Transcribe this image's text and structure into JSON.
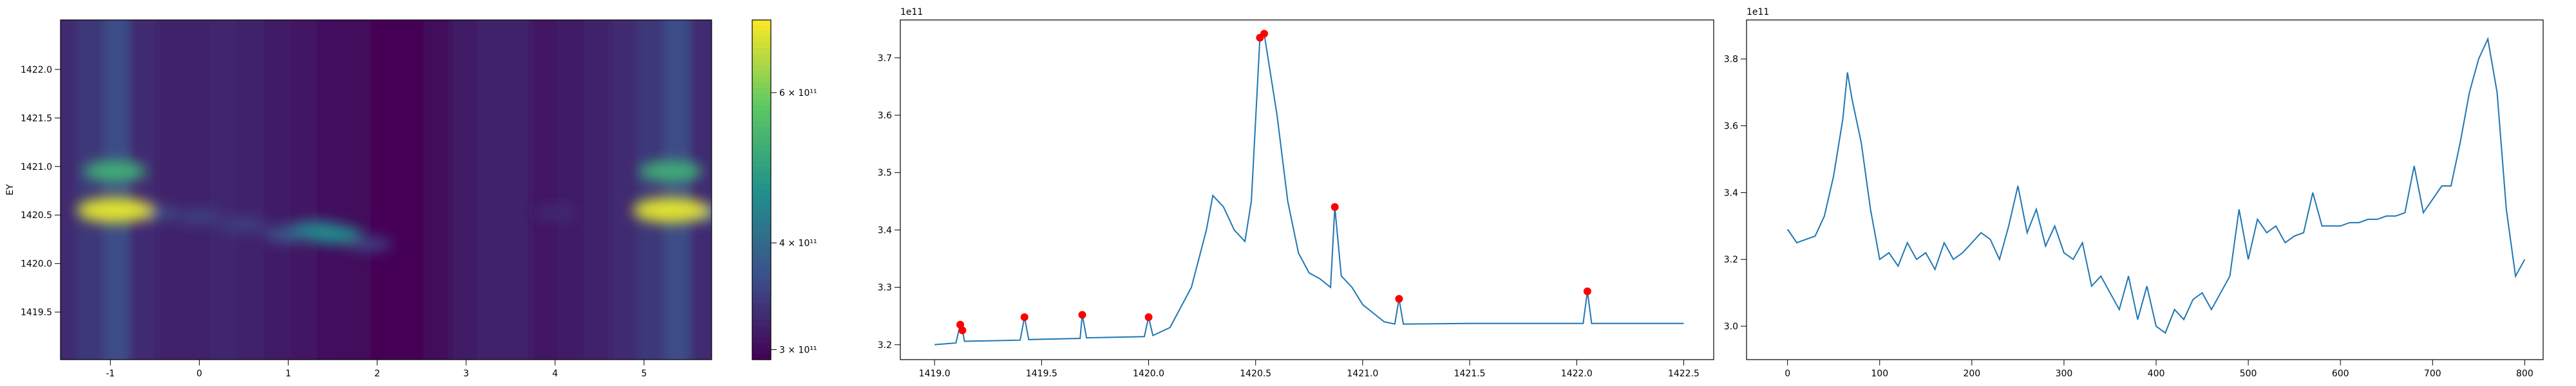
{
  "chart_data": [
    {
      "type": "heatmap",
      "ylabel": "EY",
      "xlim": [
        -1.56,
        5.76
      ],
      "ylim": [
        1419.01,
        1422.51
      ],
      "xticks": [
        -1,
        0,
        1,
        2,
        3,
        4,
        5
      ],
      "yticks": [
        1419.5,
        {
          "value": 1420,
          "label": "1420.0"
        },
        1420.5,
        {
          "value": 1421,
          "label": "1421.0"
        },
        1421.5,
        {
          "value": 1422,
          "label": "1422.0"
        }
      ],
      "column_x": [
        -1.5,
        -1.2,
        -0.9,
        -0.6,
        -0.3,
        0,
        0.3,
        0.6,
        0.9,
        1.2,
        1.5,
        1.8,
        2.1,
        2.4,
        2.7,
        3.0,
        3.3,
        3.6,
        3.9,
        4.2,
        4.5,
        4.8,
        5.1,
        5.4,
        5.7
      ],
      "column_values": [
        330000000000.0,
        340000000000.0,
        360000000000.0,
        330000000000.0,
        320000000000.0,
        320000000000.0,
        325000000000.0,
        320000000000.0,
        315000000000.0,
        310000000000.0,
        305000000000.0,
        300000000000.0,
        295000000000.0,
        295000000000.0,
        300000000000.0,
        315000000000.0,
        320000000000.0,
        320000000000.0,
        310000000000.0,
        315000000000.0,
        320000000000.0,
        330000000000.0,
        340000000000.0,
        360000000000.0,
        330000000000.0
      ],
      "spots": [
        {
          "x": -0.5,
          "y": 1420.52,
          "value": 360000000000.0
        },
        {
          "x": 0,
          "y": 1420.48,
          "value": 350000000000.0
        },
        {
          "x": 0.5,
          "y": 1420.4,
          "value": 350000000000.0
        },
        {
          "x": 1.0,
          "y": 1420.3,
          "value": 370000000000.0
        },
        {
          "x": 1.3,
          "y": 1420.35,
          "value": 420000000000.0
        },
        {
          "x": 1.5,
          "y": 1420.3,
          "value": 450000000000.0
        },
        {
          "x": 1.9,
          "y": 1420.2,
          "value": 350000000000.0
        },
        {
          "x": 4.0,
          "y": 1420.52,
          "value": 330000000000.0
        },
        {
          "x": 5.7,
          "y": 1420.52,
          "value": 400000000000.0
        },
        {
          "x": -0.95,
          "y": 1420.95,
          "value": 520000000000.0
        },
        {
          "x": 5.3,
          "y": 1420.95,
          "value": 520000000000.0
        },
        {
          "x": -0.95,
          "y": 1420.55,
          "value": 700000000000.0
        },
        {
          "x": 5.3,
          "y": 1420.55,
          "value": 700000000000.0
        }
      ],
      "colorbar": {
        "log": true,
        "lim": [
          292000000000.0,
          730000000000.0
        ],
        "ticks": [
          {
            "value": 300000000000.0,
            "label": "3 × 10¹¹"
          },
          {
            "value": 400000000000.0,
            "label": "4 × 10¹¹"
          },
          {
            "value": 600000000000.0,
            "label": "6 × 10¹¹"
          }
        ]
      }
    },
    {
      "type": "line",
      "offset_text": "1e11",
      "color": "#1f77b4",
      "xlim": [
        1418.84,
        1422.64
      ],
      "ylim": [
        3.174,
        3.766
      ],
      "xticks": [
        {
          "value": 1419,
          "label": "1419.0"
        },
        1419.5,
        {
          "value": 1420,
          "label": "1420.0"
        },
        1420.5,
        {
          "value": 1421,
          "label": "1421.0"
        },
        1421.5,
        {
          "value": 1422,
          "label": "1422.0"
        },
        1422.5
      ],
      "yticks": [
        3.2,
        3.3,
        3.4,
        3.5,
        3.6,
        3.7
      ],
      "x": [
        1419.0,
        1419.1,
        1419.12,
        1419.13,
        1419.14,
        1419.4,
        1419.42,
        1419.44,
        1419.68,
        1419.69,
        1419.71,
        1419.98,
        1420.0,
        1420.02,
        1420.1,
        1420.2,
        1420.27,
        1420.3,
        1420.35,
        1420.4,
        1420.45,
        1420.48,
        1420.52,
        1420.54,
        1420.6,
        1420.65,
        1420.7,
        1420.75,
        1420.8,
        1420.85,
        1420.87,
        1420.9,
        1420.95,
        1421.0,
        1421.1,
        1421.15,
        1421.17,
        1421.19,
        1421.5,
        1422.03,
        1422.05,
        1422.07,
        1422.5
      ],
      "values": [
        3.2,
        3.203,
        3.235,
        3.225,
        3.206,
        3.208,
        3.248,
        3.209,
        3.211,
        3.252,
        3.212,
        3.214,
        3.248,
        3.216,
        3.23,
        3.3,
        3.4,
        3.46,
        3.44,
        3.4,
        3.38,
        3.45,
        3.735,
        3.742,
        3.6,
        3.45,
        3.36,
        3.325,
        3.315,
        3.3,
        3.44,
        3.32,
        3.3,
        3.27,
        3.24,
        3.236,
        3.28,
        3.236,
        3.237,
        3.237,
        3.293,
        3.237,
        3.237
      ],
      "markers": {
        "color": "#ff0000",
        "x": [
          1419.12,
          1419.13,
          1419.42,
          1419.69,
          1420.0,
          1420.52,
          1420.54,
          1420.87,
          1421.17,
          1422.05
        ],
        "values": [
          3.235,
          3.225,
          3.248,
          3.252,
          3.248,
          3.735,
          3.742,
          3.44,
          3.28,
          3.293
        ]
      }
    },
    {
      "type": "line",
      "offset_text": "1e11",
      "color": "#1f77b4",
      "xlim": [
        -44.5,
        820
      ],
      "ylim": [
        2.9,
        3.917
      ],
      "xticks": [
        0,
        100,
        200,
        300,
        400,
        500,
        600,
        700,
        800
      ],
      "yticks": [
        {
          "value": 3,
          "label": "3.0"
        },
        3.2,
        3.4,
        3.6,
        3.8
      ],
      "x": [
        0,
        10,
        20,
        30,
        40,
        50,
        60,
        65,
        70,
        80,
        90,
        100,
        110,
        120,
        130,
        140,
        150,
        160,
        170,
        180,
        190,
        200,
        210,
        220,
        230,
        240,
        250,
        260,
        270,
        280,
        290,
        300,
        310,
        320,
        330,
        340,
        350,
        360,
        370,
        380,
        390,
        400,
        410,
        420,
        430,
        440,
        450,
        460,
        470,
        480,
        490,
        500,
        510,
        520,
        530,
        540,
        550,
        560,
        570,
        580,
        590,
        600,
        610,
        620,
        630,
        640,
        650,
        660,
        670,
        680,
        690,
        700,
        710,
        720,
        730,
        740,
        750,
        760,
        770,
        780,
        790,
        800
      ],
      "values": [
        3.29,
        3.25,
        3.26,
        3.27,
        3.33,
        3.45,
        3.62,
        3.76,
        3.68,
        3.55,
        3.35,
        3.2,
        3.22,
        3.18,
        3.25,
        3.2,
        3.22,
        3.17,
        3.25,
        3.2,
        3.22,
        3.25,
        3.28,
        3.26,
        3.2,
        3.3,
        3.42,
        3.28,
        3.35,
        3.24,
        3.3,
        3.22,
        3.2,
        3.25,
        3.12,
        3.15,
        3.1,
        3.05,
        3.15,
        3.02,
        3.12,
        3.0,
        2.98,
        3.05,
        3.02,
        3.08,
        3.1,
        3.05,
        3.1,
        3.15,
        3.35,
        3.2,
        3.32,
        3.28,
        3.3,
        3.25,
        3.27,
        3.28,
        3.4,
        3.3,
        3.3,
        3.3,
        3.31,
        3.31,
        3.32,
        3.32,
        3.33,
        3.33,
        3.34,
        3.48,
        3.34,
        3.38,
        3.42,
        3.42,
        3.55,
        3.7,
        3.8,
        3.86,
        3.7,
        3.35,
        3.15,
        3.2
      ]
    }
  ]
}
